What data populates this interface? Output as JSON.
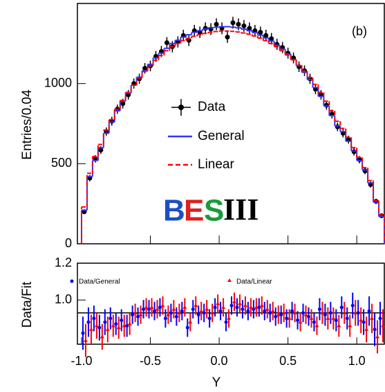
{
  "chart_data": [
    {
      "type": "hist",
      "y_label": "Entries/0.04",
      "annotation": "(b)",
      "logo": [
        "B",
        "E",
        "S",
        "III"
      ],
      "xlim": [
        -1.03,
        1.2
      ],
      "xticks": [
        -1.0,
        -0.5,
        0.0,
        0.5,
        1.0
      ],
      "ylim": [
        0,
        1500
      ],
      "yticks": [
        0,
        500,
        1000
      ],
      "bin_width": 0.04,
      "x": [
        -0.98,
        -0.94,
        -0.9,
        -0.86,
        -0.82,
        -0.78,
        -0.74,
        -0.7,
        -0.66,
        -0.62,
        -0.58,
        -0.54,
        -0.5,
        -0.46,
        -0.42,
        -0.38,
        -0.34,
        -0.3,
        -0.26,
        -0.22,
        -0.18,
        -0.14,
        -0.1,
        -0.06,
        -0.02,
        0.02,
        0.06,
        0.1,
        0.14,
        0.18,
        0.22,
        0.26,
        0.3,
        0.34,
        0.38,
        0.42,
        0.46,
        0.5,
        0.54,
        0.58,
        0.62,
        0.66,
        0.7,
        0.74,
        0.78,
        0.82,
        0.86,
        0.9,
        0.94,
        0.98,
        1.02,
        1.06,
        1.1,
        1.14,
        1.18
      ],
      "series": [
        {
          "name": "Data",
          "style": "points",
          "color": "#000000",
          "values": [
            200,
            410,
            530,
            585,
            700,
            765,
            840,
            875,
            930,
            1000,
            1030,
            1095,
            1110,
            1170,
            1200,
            1255,
            1230,
            1260,
            1300,
            1270,
            1330,
            1320,
            1345,
            1340,
            1370,
            1345,
            1290,
            1380,
            1370,
            1360,
            1345,
            1330,
            1320,
            1300,
            1280,
            1245,
            1225,
            1190,
            1160,
            1105,
            1080,
            1030,
            965,
            930,
            865,
            810,
            730,
            690,
            650,
            575,
            525,
            455,
            370,
            265,
            175
          ],
          "errors": [
            14,
            20,
            23,
            24,
            26,
            28,
            29,
            30,
            30,
            32,
            32,
            33,
            33,
            34,
            35,
            35,
            35,
            35,
            36,
            36,
            36,
            36,
            37,
            37,
            37,
            37,
            36,
            37,
            37,
            37,
            37,
            36,
            36,
            36,
            36,
            35,
            35,
            34,
            34,
            33,
            33,
            32,
            31,
            30,
            29,
            28,
            27,
            26,
            25,
            24,
            23,
            21,
            19,
            16,
            13
          ]
        },
        {
          "name": "General",
          "style": "step",
          "color": "#3333ff",
          "values": [
            210,
            420,
            520,
            600,
            690,
            760,
            830,
            890,
            940,
            990,
            1040,
            1080,
            1120,
            1160,
            1190,
            1220,
            1250,
            1270,
            1290,
            1305,
            1320,
            1330,
            1340,
            1348,
            1352,
            1355,
            1355,
            1352,
            1348,
            1340,
            1330,
            1318,
            1302,
            1285,
            1265,
            1240,
            1215,
            1185,
            1150,
            1112,
            1070,
            1025,
            975,
            920,
            860,
            800,
            735,
            700,
            640,
            580,
            520,
            460,
            380,
            260,
            170
          ]
        },
        {
          "name": "Linear",
          "style": "dashed",
          "color": "#ff0000",
          "values": [
            230,
            440,
            545,
            620,
            710,
            775,
            840,
            895,
            945,
            990,
            1035,
            1075,
            1110,
            1145,
            1175,
            1205,
            1230,
            1250,
            1268,
            1282,
            1295,
            1305,
            1313,
            1320,
            1325,
            1328,
            1328,
            1326,
            1322,
            1316,
            1308,
            1297,
            1284,
            1268,
            1250,
            1230,
            1205,
            1178,
            1148,
            1114,
            1078,
            1038,
            995,
            945,
            890,
            830,
            765,
            720,
            665,
            600,
            540,
            475,
            395,
            270,
            180
          ]
        }
      ]
    },
    {
      "type": "ratio",
      "x_label": "Y",
      "y_label": "Data/Fit",
      "xlim": [
        -1.03,
        1.2
      ],
      "xticks": [
        {
          "value": -1.0,
          "label": "-1.0"
        },
        -0.5,
        {
          "value": 0.0,
          "label": "0.0"
        },
        0.5,
        {
          "value": 1.0,
          "label": "1.0"
        }
      ],
      "ylim": [
        0.76,
        1.2
      ],
      "yticks": [
        {
          "value": 1.0,
          "label": "1.0"
        },
        {
          "value": 1.2,
          "label": "1.2"
        }
      ],
      "reference_line": 0.93,
      "series": [
        {
          "name": "Data/General",
          "marker": "circle",
          "color": "#0000ff",
          "values": [
            0.82,
            0.88,
            0.9,
            0.85,
            0.88,
            0.9,
            0.87,
            0.89,
            0.86,
            0.92,
            0.91,
            0.95,
            0.95,
            0.94,
            0.96,
            0.9,
            0.93,
            0.91,
            0.94,
            0.85,
            0.95,
            0.92,
            0.93,
            0.9,
            0.96,
            0.94,
            0.88,
            0.97,
            0.96,
            0.95,
            0.94,
            0.95,
            0.96,
            0.94,
            0.93,
            0.91,
            0.92,
            0.9,
            0.94,
            0.89,
            0.93,
            0.91,
            0.88,
            0.95,
            0.92,
            0.93,
            0.89,
            0.96,
            0.9,
            0.97,
            0.93,
            0.88,
            0.94,
            0.84,
            0.9
          ],
          "errors": [
            0.09,
            0.08,
            0.07,
            0.07,
            0.07,
            0.06,
            0.06,
            0.06,
            0.06,
            0.05,
            0.05,
            0.05,
            0.05,
            0.05,
            0.05,
            0.05,
            0.05,
            0.05,
            0.05,
            0.05,
            0.05,
            0.05,
            0.05,
            0.05,
            0.05,
            0.05,
            0.05,
            0.05,
            0.05,
            0.05,
            0.05,
            0.05,
            0.05,
            0.05,
            0.05,
            0.05,
            0.05,
            0.05,
            0.05,
            0.05,
            0.05,
            0.05,
            0.05,
            0.06,
            0.06,
            0.06,
            0.06,
            0.06,
            0.06,
            0.07,
            0.07,
            0.07,
            0.08,
            0.09,
            0.09
          ]
        },
        {
          "name": "Data/Linear",
          "marker": "triangle",
          "color": "#ff0000",
          "values": [
            0.78,
            0.84,
            0.86,
            0.8,
            0.84,
            0.86,
            0.85,
            0.86,
            0.87,
            0.93,
            0.92,
            0.96,
            0.96,
            0.95,
            0.97,
            0.92,
            0.95,
            0.93,
            0.96,
            0.88,
            0.97,
            0.94,
            0.95,
            0.93,
            0.98,
            0.96,
            0.9,
            0.99,
            0.98,
            0.97,
            0.96,
            0.96,
            0.97,
            0.95,
            0.94,
            0.92,
            0.93,
            0.9,
            0.93,
            0.88,
            0.92,
            0.9,
            0.86,
            0.93,
            0.9,
            0.9,
            0.86,
            0.93,
            0.86,
            0.93,
            0.89,
            0.84,
            0.9,
            0.8,
            0.86
          ],
          "errors": [
            0.09,
            0.08,
            0.07,
            0.07,
            0.07,
            0.06,
            0.06,
            0.06,
            0.06,
            0.05,
            0.05,
            0.05,
            0.05,
            0.05,
            0.05,
            0.05,
            0.05,
            0.05,
            0.05,
            0.05,
            0.05,
            0.05,
            0.05,
            0.05,
            0.05,
            0.05,
            0.05,
            0.05,
            0.05,
            0.05,
            0.05,
            0.05,
            0.05,
            0.05,
            0.05,
            0.05,
            0.05,
            0.05,
            0.05,
            0.05,
            0.05,
            0.05,
            0.05,
            0.06,
            0.06,
            0.06,
            0.06,
            0.06,
            0.06,
            0.07,
            0.07,
            0.07,
            0.08,
            0.09,
            0.09
          ]
        }
      ]
    }
  ]
}
